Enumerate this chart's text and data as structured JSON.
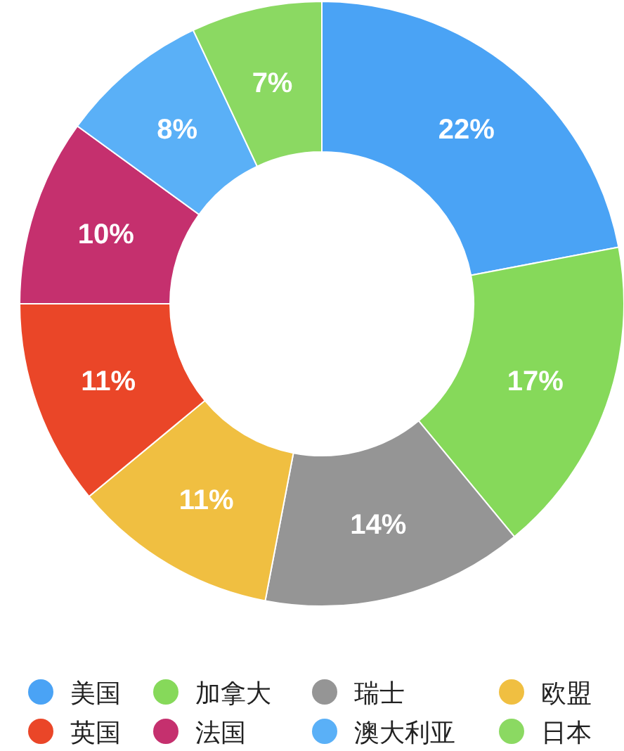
{
  "chart_data": {
    "type": "donut",
    "categories": [
      "美国",
      "加拿大",
      "瑞士",
      "欧盟",
      "英国",
      "法国",
      "澳大利亚",
      "日本"
    ],
    "values": [
      22,
      17,
      14,
      11,
      11,
      10,
      8,
      7
    ],
    "colors": [
      "#4aa3f5",
      "#86d95a",
      "#959595",
      "#f0bf41",
      "#ea4628",
      "#c5306e",
      "#5ab0f7",
      "#8bd962"
    ],
    "value_labels": [
      "22%",
      "17%",
      "14%",
      "11%",
      "11%",
      "10%",
      "8%",
      "7%"
    ],
    "legend": "bottom"
  }
}
